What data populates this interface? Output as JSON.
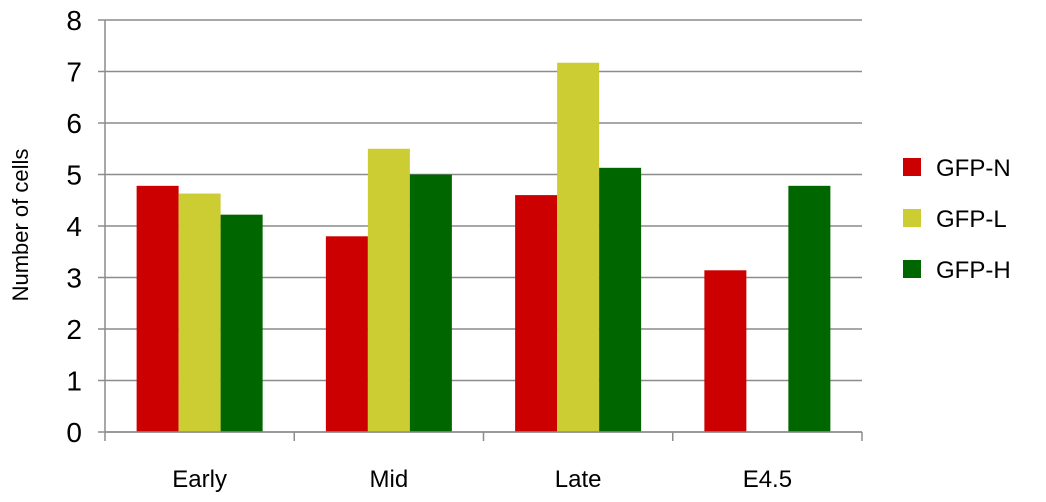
{
  "chart_data": {
    "type": "bar",
    "categories": [
      "Early",
      "Mid",
      "Late",
      "E4.5"
    ],
    "series": [
      {
        "name": "GFP-N",
        "color": "#cc0000",
        "values": [
          4.78,
          3.8,
          4.6,
          3.14
        ]
      },
      {
        "name": "GFP-L",
        "color": "#cccc33",
        "values": [
          4.63,
          5.5,
          7.17,
          null
        ]
      },
      {
        "name": "GFP-H",
        "color": "#006600",
        "values": [
          4.22,
          5.0,
          5.13,
          4.78
        ]
      }
    ],
    "ylabel": "Number of cells",
    "ylim": [
      0,
      8
    ],
    "yticks": [
      "0",
      "1",
      "2",
      "3",
      "4",
      "5",
      "6",
      "7",
      "8"
    ],
    "grid": true,
    "legend": "right"
  }
}
